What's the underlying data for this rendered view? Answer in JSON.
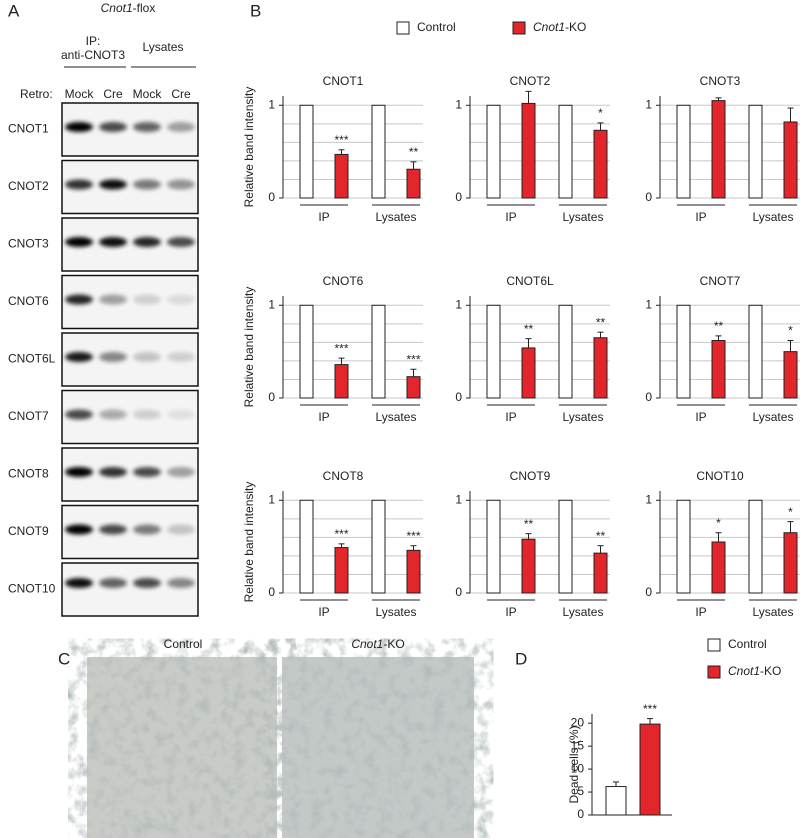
{
  "panel_labels": [
    "A",
    "B",
    "C",
    "D"
  ],
  "blot": {
    "header": "Cnot1-flox",
    "ip_label": [
      "IP:",
      "anti-CNOT3"
    ],
    "lysates_label": "Lysates",
    "retro_label": "Retro:",
    "lanes": [
      "Mock",
      "Cre",
      "Mock",
      "Cre"
    ],
    "rows": [
      "CNOT1",
      "CNOT2",
      "CNOT3",
      "CNOT6",
      "CNOT6L",
      "CNOT7",
      "CNOT8",
      "CNOT9",
      "CNOT10"
    ]
  },
  "photos": {
    "labels": [
      "Control",
      "Cnot1-KO"
    ]
  },
  "chart_data": [
    {
      "type": "bar",
      "title": "CNOT1",
      "ylabel": "Relative band intensity",
      "categories": [
        "IP",
        "Lysates"
      ],
      "ylim": [
        0,
        1.1
      ],
      "yticks": [
        0,
        1
      ],
      "grid_lines": [
        0,
        0.2,
        0.4,
        0.6,
        0.8,
        1
      ],
      "series": [
        {
          "name": "Control",
          "color": "#ffffff",
          "values": [
            1,
            1
          ]
        },
        {
          "name": "Cnot1-KO",
          "color": "#e3262b",
          "values": [
            0.47,
            0.31
          ],
          "errors": [
            0.05,
            0.08
          ],
          "annotations": [
            "***",
            "**"
          ]
        }
      ]
    },
    {
      "type": "bar",
      "title": "CNOT2",
      "categories": [
        "IP",
        "Lysates"
      ],
      "ylim": [
        0,
        1.1
      ],
      "yticks": [
        0,
        1
      ],
      "grid_lines": [
        0,
        0.2,
        0.4,
        0.6,
        0.8,
        1
      ],
      "series": [
        {
          "name": "Control",
          "color": "#ffffff",
          "values": [
            1,
            1
          ]
        },
        {
          "name": "Cnot1-KO",
          "color": "#e3262b",
          "values": [
            1.02,
            0.73
          ],
          "errors": [
            0.13,
            0.08
          ],
          "annotations": [
            null,
            "*"
          ]
        }
      ]
    },
    {
      "type": "bar",
      "title": "CNOT3",
      "categories": [
        "IP",
        "Lysates"
      ],
      "ylim": [
        0,
        1.1
      ],
      "yticks": [
        0,
        1
      ],
      "grid_lines": [
        0,
        0.2,
        0.4,
        0.6,
        0.8,
        1
      ],
      "series": [
        {
          "name": "Control",
          "color": "#ffffff",
          "values": [
            1,
            1
          ]
        },
        {
          "name": "Cnot1-KO",
          "color": "#e3262b",
          "values": [
            1.05,
            0.82
          ],
          "errors": [
            0.03,
            0.15
          ]
        }
      ]
    },
    {
      "type": "bar",
      "title": "CNOT6",
      "ylabel": "Relative band intensity",
      "categories": [
        "IP",
        "Lysates"
      ],
      "ylim": [
        0,
        1.1
      ],
      "yticks": [
        0,
        1
      ],
      "grid_lines": [
        0,
        0.2,
        0.4,
        0.6,
        0.8,
        1
      ],
      "series": [
        {
          "name": "Control",
          "color": "#ffffff",
          "values": [
            1,
            1
          ]
        },
        {
          "name": "Cnot1-KO",
          "color": "#e3262b",
          "values": [
            0.36,
            0.23
          ],
          "errors": [
            0.07,
            0.08
          ],
          "annotations": [
            "***",
            "***"
          ]
        }
      ]
    },
    {
      "type": "bar",
      "title": "CNOT6L",
      "categories": [
        "IP",
        "Lysates"
      ],
      "ylim": [
        0,
        1.1
      ],
      "yticks": [
        0,
        1
      ],
      "grid_lines": [
        0,
        0.2,
        0.4,
        0.6,
        0.8,
        1
      ],
      "series": [
        {
          "name": "Control",
          "color": "#ffffff",
          "values": [
            1,
            1
          ]
        },
        {
          "name": "Cnot1-KO",
          "color": "#e3262b",
          "values": [
            0.54,
            0.65
          ],
          "errors": [
            0.1,
            0.06
          ],
          "annotations": [
            "**",
            "**"
          ]
        }
      ]
    },
    {
      "type": "bar",
      "title": "CNOT7",
      "categories": [
        "IP",
        "Lysates"
      ],
      "ylim": [
        0,
        1.1
      ],
      "yticks": [
        0,
        1
      ],
      "grid_lines": [
        0,
        0.2,
        0.4,
        0.6,
        0.8,
        1
      ],
      "series": [
        {
          "name": "Control",
          "color": "#ffffff",
          "values": [
            1,
            1
          ]
        },
        {
          "name": "Cnot1-KO",
          "color": "#e3262b",
          "values": [
            0.62,
            0.5
          ],
          "errors": [
            0.05,
            0.12
          ],
          "annotations": [
            "**",
            "*"
          ]
        }
      ]
    },
    {
      "type": "bar",
      "title": "CNOT8",
      "ylabel": "Relative band intensity",
      "categories": [
        "IP",
        "Lysates"
      ],
      "ylim": [
        0,
        1.1
      ],
      "yticks": [
        0,
        1
      ],
      "grid_lines": [
        0,
        0.2,
        0.4,
        0.6,
        0.8,
        1
      ],
      "series": [
        {
          "name": "Control",
          "color": "#ffffff",
          "values": [
            1,
            1
          ]
        },
        {
          "name": "Cnot1-KO",
          "color": "#e3262b",
          "values": [
            0.49,
            0.46
          ],
          "errors": [
            0.04,
            0.05
          ],
          "annotations": [
            "***",
            "***"
          ]
        }
      ]
    },
    {
      "type": "bar",
      "title": "CNOT9",
      "categories": [
        "IP",
        "Lysates"
      ],
      "ylim": [
        0,
        1.1
      ],
      "yticks": [
        0,
        1
      ],
      "grid_lines": [
        0,
        0.2,
        0.4,
        0.6,
        0.8,
        1
      ],
      "series": [
        {
          "name": "Control",
          "color": "#ffffff",
          "values": [
            1,
            1
          ]
        },
        {
          "name": "Cnot1-KO",
          "color": "#e3262b",
          "values": [
            0.58,
            0.43
          ],
          "errors": [
            0.06,
            0.08
          ],
          "annotations": [
            "**",
            "**"
          ]
        }
      ]
    },
    {
      "type": "bar",
      "title": "CNOT10",
      "categories": [
        "IP",
        "Lysates"
      ],
      "ylim": [
        0,
        1.1
      ],
      "yticks": [
        0,
        1
      ],
      "grid_lines": [
        0,
        0.2,
        0.4,
        0.6,
        0.8,
        1
      ],
      "series": [
        {
          "name": "Control",
          "color": "#ffffff",
          "values": [
            1,
            1
          ]
        },
        {
          "name": "Cnot1-KO",
          "color": "#e3262b",
          "values": [
            0.55,
            0.65
          ],
          "errors": [
            0.1,
            0.12
          ],
          "annotations": [
            "*",
            "*"
          ]
        }
      ]
    },
    {
      "type": "bar",
      "ylabel": "Dead cells (%)",
      "ylim": [
        0,
        22
      ],
      "yticks": [
        0,
        5,
        10,
        15,
        20
      ],
      "series": [
        {
          "name": "Control",
          "color": "#ffffff",
          "values": [
            6.2
          ],
          "errors": [
            1
          ]
        },
        {
          "name": "Cnot1-KO",
          "color": "#e3262b",
          "values": [
            19.8
          ],
          "errors": [
            1.2
          ],
          "annotations": [
            "***"
          ]
        }
      ]
    }
  ]
}
